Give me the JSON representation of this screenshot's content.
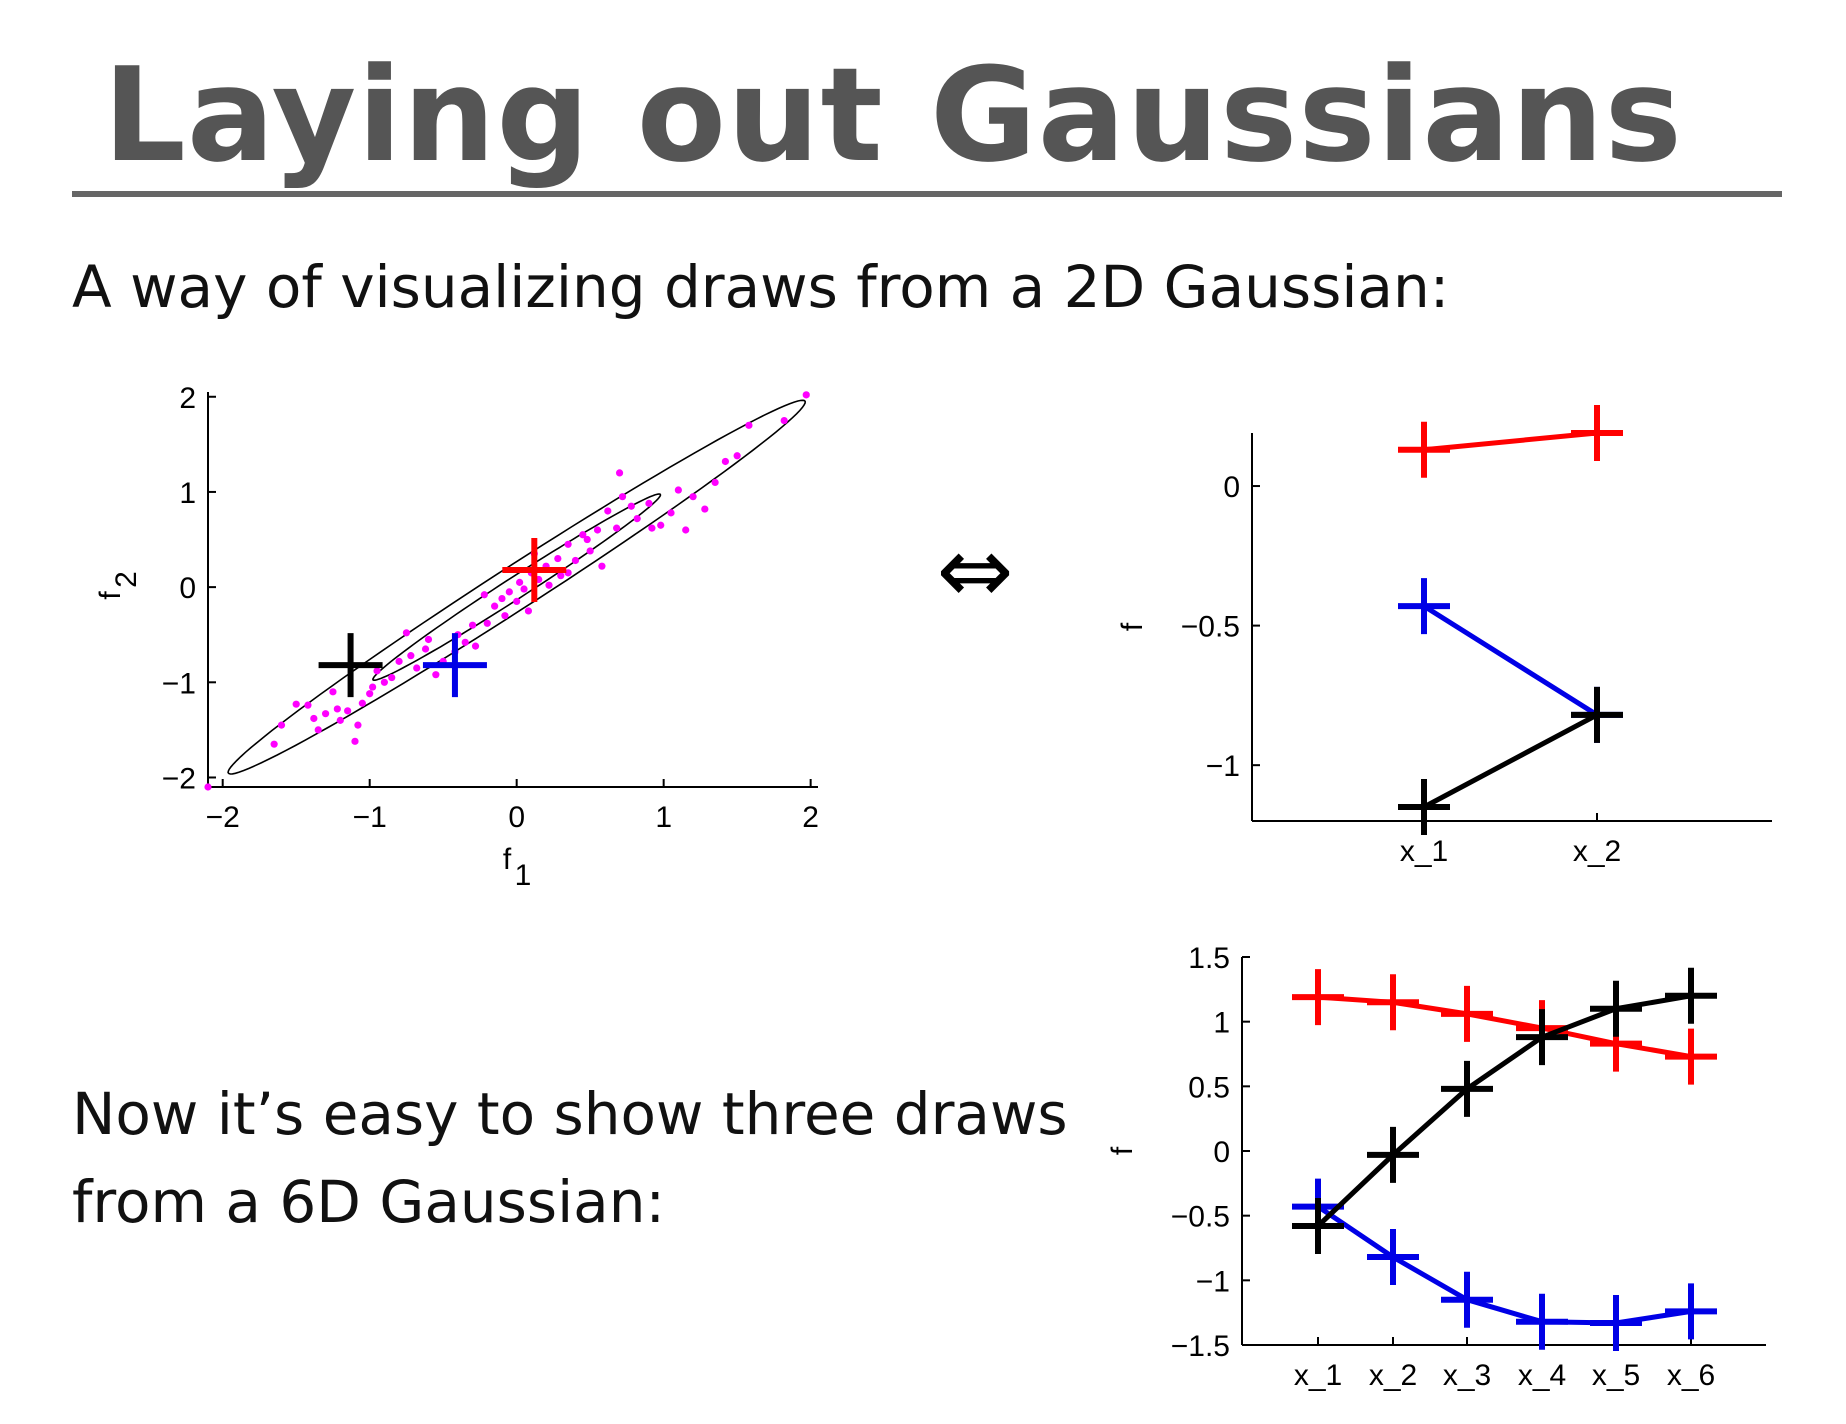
{
  "slide": {
    "title": "Laying out Gaussians",
    "line1": "A way of visualizing draws from a 2D Gaussian:",
    "line2": "Now it’s easy to show three draws",
    "line3": "from a 6D Gaussian:",
    "equiv_symbol": "⇔"
  },
  "colors": {
    "red": "#ff0000",
    "blue": "#0000e6",
    "black": "#000000",
    "scatter": "#ff00ff"
  },
  "chart_data": [
    {
      "type": "scatter",
      "xlabel": "f",
      "xlabel_sub": "1",
      "ylabel": "f",
      "ylabel_sub": "2",
      "xlim": [
        -2.1,
        2.05
      ],
      "ylim": [
        -2.1,
        2.05
      ],
      "xticks": [
        -2,
        -1,
        0,
        1,
        2
      ],
      "yticks": [
        -2,
        -1,
        0,
        1,
        2
      ],
      "tick_labels": [
        "−2",
        "−1",
        "0",
        "1",
        "2"
      ],
      "ellipses": [
        {
          "center": [
            0,
            0
          ],
          "semi_major": 2.77,
          "semi_minor": 0.19,
          "angle_deg": 45
        },
        {
          "center": [
            0,
            0
          ],
          "semi_major": 1.38,
          "semi_minor": 0.095,
          "angle_deg": 45
        }
      ],
      "points": [
        [
          -2.1,
          -2.1
        ],
        [
          1.97,
          2.02
        ],
        [
          -1.6,
          -1.45
        ],
        [
          -1.5,
          -1.23
        ],
        [
          -1.42,
          -1.24
        ],
        [
          -1.35,
          -1.5
        ],
        [
          -1.3,
          -1.33
        ],
        [
          -1.25,
          -1.1
        ],
        [
          -1.2,
          -1.4
        ],
        [
          -1.15,
          -1.3
        ],
        [
          -1.1,
          -1.62
        ],
        [
          -1.08,
          -1.45
        ],
        [
          -1.05,
          -1.22
        ],
        [
          -1.0,
          -1.12
        ],
        [
          -0.95,
          -0.88
        ],
        [
          -0.98,
          -1.05
        ],
        [
          -0.9,
          -1.0
        ],
        [
          -0.85,
          -0.95
        ],
        [
          -0.8,
          -0.78
        ],
        [
          -0.72,
          -0.72
        ],
        [
          -0.68,
          -0.85
        ],
        [
          -0.6,
          -0.55
        ],
        [
          -0.55,
          -0.92
        ],
        [
          -0.5,
          -0.78
        ],
        [
          -0.42,
          -0.68
        ],
        [
          -0.4,
          -0.5
        ],
        [
          -0.35,
          -0.58
        ],
        [
          -0.3,
          -0.4
        ],
        [
          -0.28,
          -0.62
        ],
        [
          -0.2,
          -0.38
        ],
        [
          -0.15,
          -0.2
        ],
        [
          -0.1,
          -0.12
        ],
        [
          -0.08,
          -0.3
        ],
        [
          -0.05,
          -0.05
        ],
        [
          0.0,
          -0.15
        ],
        [
          0.02,
          0.05
        ],
        [
          0.05,
          -0.02
        ],
        [
          0.08,
          -0.25
        ],
        [
          0.1,
          0.15
        ],
        [
          0.12,
          0.35
        ],
        [
          0.15,
          0.08
        ],
        [
          0.2,
          0.22
        ],
        [
          0.22,
          0.02
        ],
        [
          0.28,
          0.3
        ],
        [
          0.3,
          0.12
        ],
        [
          0.35,
          0.45
        ],
        [
          0.4,
          0.28
        ],
        [
          0.45,
          0.55
        ],
        [
          0.5,
          0.38
        ],
        [
          0.55,
          0.6
        ],
        [
          0.58,
          0.22
        ],
        [
          0.62,
          0.8
        ],
        [
          0.68,
          0.62
        ],
        [
          0.72,
          0.95
        ],
        [
          0.78,
          0.85
        ],
        [
          0.82,
          0.72
        ],
        [
          0.9,
          0.88
        ],
        [
          0.98,
          0.65
        ],
        [
          1.05,
          0.78
        ],
        [
          1.1,
          1.02
        ],
        [
          1.15,
          0.6
        ],
        [
          1.2,
          0.95
        ],
        [
          1.28,
          0.82
        ],
        [
          1.35,
          1.1
        ],
        [
          1.42,
          1.32
        ],
        [
          1.5,
          1.38
        ],
        [
          1.58,
          1.7
        ],
        [
          1.82,
          1.75
        ],
        [
          -1.65,
          -1.65
        ],
        [
          -1.38,
          -1.38
        ],
        [
          -0.75,
          -0.48
        ],
        [
          0.7,
          1.2
        ],
        [
          0.35,
          0.15
        ],
        [
          -0.22,
          -0.08
        ],
        [
          0.48,
          0.5
        ],
        [
          -0.62,
          -0.65
        ],
        [
          -1.22,
          -1.28
        ],
        [
          0.92,
          0.62
        ]
      ],
      "markers": [
        {
          "color": "red",
          "x": 0.12,
          "y": 0.18
        },
        {
          "color": "blue",
          "x": -0.42,
          "y": -0.82
        },
        {
          "color": "black",
          "x": -1.13,
          "y": -0.82
        }
      ]
    },
    {
      "type": "line",
      "categories": [
        "x_1",
        "x_2"
      ],
      "ylabel": "f",
      "ylim": [
        -1.2,
        0.19
      ],
      "yticks": [
        0,
        -0.5,
        -1
      ],
      "ytick_labels": [
        "0",
        "−0.5",
        "−1"
      ],
      "series": [
        {
          "color": "red",
          "values": [
            0.13,
            0.19
          ]
        },
        {
          "color": "blue",
          "values": [
            -0.43,
            -0.82
          ]
        },
        {
          "color": "black",
          "values": [
            -1.15,
            -0.82
          ]
        }
      ]
    },
    {
      "type": "line",
      "categories": [
        "x_1",
        "x_2",
        "x_3",
        "x_4",
        "x_5",
        "x_6"
      ],
      "ylabel": "f",
      "ylim": [
        -1.5,
        1.5
      ],
      "yticks": [
        1.5,
        1,
        0.5,
        0,
        -0.5,
        -1,
        -1.5
      ],
      "ytick_labels": [
        "1.5",
        "1",
        "0.5",
        "0",
        "−0.5",
        "−1",
        "−1.5"
      ],
      "series": [
        {
          "color": "red",
          "values": [
            1.19,
            1.15,
            1.06,
            0.95,
            0.83,
            0.73
          ]
        },
        {
          "color": "blue",
          "values": [
            -0.43,
            -0.82,
            -1.15,
            -1.32,
            -1.33,
            -1.24
          ]
        },
        {
          "color": "black",
          "values": [
            -0.58,
            -0.03,
            0.48,
            0.88,
            1.1,
            1.2
          ]
        }
      ]
    }
  ]
}
